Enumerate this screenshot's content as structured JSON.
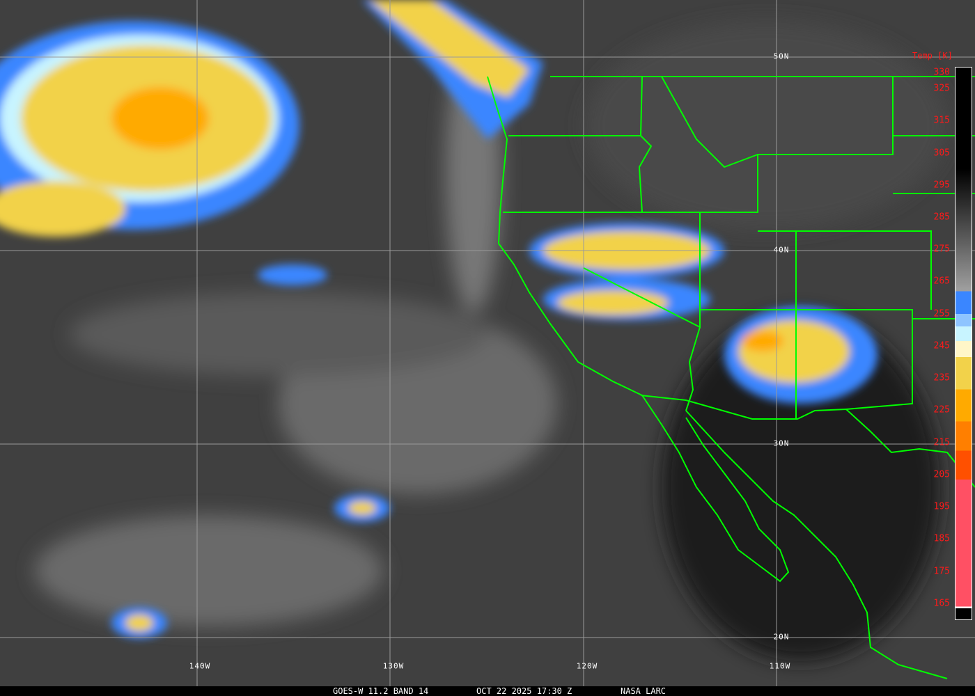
{
  "footer": {
    "satellite": "GOES-W 11.2 BAND 14",
    "datetime": "OCT 22 2025 17:30 Z",
    "source": "NASA LARC"
  },
  "grid_labels": {
    "lat": [
      "50N",
      "40N",
      "30N",
      "20N"
    ],
    "lon": [
      "140W",
      "130W",
      "120W",
      "110W"
    ]
  },
  "colorbar": {
    "title": "Temp [K]",
    "ticks": [
      "330",
      "325",
      "315",
      "305",
      "295",
      "285",
      "275",
      "265",
      "255",
      "245",
      "235",
      "225",
      "215",
      "205",
      "195",
      "185",
      "175",
      "165"
    ],
    "range": [
      160,
      330
    ],
    "colors": {
      "warm_top": "#000000",
      "gray_mid": "#a0a0a0",
      "blue": "#3a86ff",
      "light_blue": "#8ec4ff",
      "pale_cyan": "#c8f4ff",
      "cream": "#fff6c8",
      "yellow": "#f2d24a",
      "orange": "#ffaa00",
      "dark_orange": "#ff7f00",
      "red_orange": "#ff5000",
      "pink": "#ff5064"
    }
  },
  "map_colors": {
    "borders": "#00ff00",
    "grid": "#9a9a9a",
    "label_color": "#ff1a1a"
  }
}
